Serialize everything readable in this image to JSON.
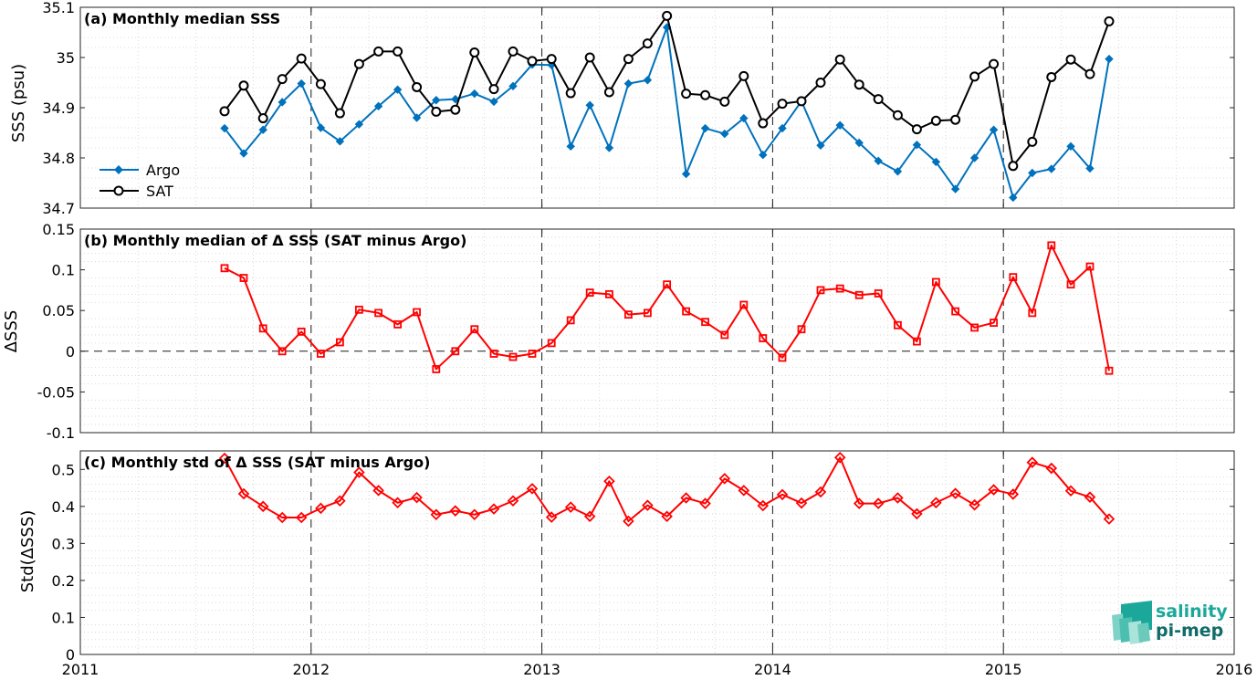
{
  "colors": {
    "argo": "#0072BD",
    "sat": "#000000",
    "delta": "#FF0000",
    "logo_teal": "#1BA89A",
    "logo_dark": "#116B66"
  },
  "logo": {
    "line1": "salinity",
    "line2": "pi-mep"
  },
  "chart_data": [
    {
      "type": "line",
      "title": "(a) Monthly median SSS",
      "ylabel": "SSS (psu)",
      "xlim": [
        2011,
        2016
      ],
      "ylim": [
        34.7,
        35.1
      ],
      "yticks": [
        34.7,
        34.8,
        34.9,
        35,
        35.1
      ],
      "ytick_labels": [
        "34.7",
        "34.8",
        "34.9",
        "35",
        "35.1"
      ],
      "xticks": [
        2011,
        2012,
        2013,
        2014,
        2015,
        2016
      ],
      "xtick_labels": [
        "2011",
        "2012",
        "2013",
        "2014",
        "2015",
        "2016"
      ],
      "grid": true,
      "legend": "bottom-left",
      "x": [
        2011.625,
        2011.708,
        2011.792,
        2011.875,
        2011.958,
        2012.042,
        2012.125,
        2012.208,
        2012.292,
        2012.375,
        2012.458,
        2012.542,
        2012.625,
        2012.708,
        2012.792,
        2012.875,
        2012.958,
        2013.042,
        2013.125,
        2013.208,
        2013.292,
        2013.375,
        2013.458,
        2013.542,
        2013.625,
        2013.708,
        2013.792,
        2013.875,
        2013.958,
        2014.042,
        2014.125,
        2014.208,
        2014.292,
        2014.375,
        2014.458,
        2014.542,
        2014.625,
        2014.708,
        2014.792,
        2014.875,
        2014.958,
        2015.042,
        2015.125,
        2015.208,
        2015.292,
        2015.375,
        2015.458
      ],
      "series": [
        {
          "name": "Argo",
          "values": [
            34.859,
            34.809,
            34.856,
            34.911,
            34.948,
            34.86,
            34.833,
            34.867,
            34.903,
            34.936,
            34.88,
            34.915,
            34.917,
            34.928,
            34.912,
            34.943,
            34.986,
            34.985,
            34.823,
            34.905,
            34.82,
            34.948,
            34.955,
            35.06,
            34.768,
            34.859,
            34.848,
            34.879,
            34.806,
            34.859,
            34.913,
            34.825,
            34.865,
            34.83,
            34.794,
            34.773,
            34.826,
            34.792,
            34.738,
            34.8,
            34.856,
            34.721,
            34.77,
            34.778,
            34.823,
            34.779,
            34.997
          ]
        },
        {
          "name": "SAT",
          "values": [
            34.893,
            34.944,
            34.879,
            34.957,
            34.998,
            34.947,
            34.889,
            34.987,
            35.012,
            35.012,
            34.941,
            34.892,
            34.896,
            35.01,
            34.937,
            35.012,
            34.993,
            34.997,
            34.929,
            35,
            34.931,
            34.997,
            35.028,
            35.083,
            34.928,
            34.925,
            34.912,
            34.963,
            34.869,
            34.908,
            34.913,
            34.95,
            34.996,
            34.946,
            34.917,
            34.885,
            34.857,
            34.874,
            34.876,
            34.962,
            34.987,
            34.784,
            34.832,
            34.961,
            34.996,
            34.967,
            35.072
          ]
        }
      ]
    },
    {
      "type": "line",
      "title": "(b) Monthly median of Δ SSS (SAT minus Argo)",
      "ylabel": "ΔSSS",
      "xlim": [
        2011,
        2016
      ],
      "ylim": [
        -0.1,
        0.15
      ],
      "yticks": [
        -0.1,
        -0.05,
        0,
        0.05,
        0.1,
        0.15
      ],
      "ytick_labels": [
        "-0.1",
        "-0.05",
        "0",
        "0.05",
        "0.1",
        "0.15"
      ],
      "xticks": [
        2011,
        2012,
        2013,
        2014,
        2015,
        2016
      ],
      "grid": true,
      "x": [
        2011.625,
        2011.708,
        2011.792,
        2011.875,
        2011.958,
        2012.042,
        2012.125,
        2012.208,
        2012.292,
        2012.375,
        2012.458,
        2012.542,
        2012.625,
        2012.708,
        2012.792,
        2012.875,
        2012.958,
        2013.042,
        2013.125,
        2013.208,
        2013.292,
        2013.375,
        2013.458,
        2013.542,
        2013.625,
        2013.708,
        2013.792,
        2013.875,
        2013.958,
        2014.042,
        2014.125,
        2014.208,
        2014.292,
        2014.375,
        2014.458,
        2014.542,
        2014.625,
        2014.708,
        2014.792,
        2014.875,
        2014.958,
        2015.042,
        2015.125,
        2015.208,
        2015.292,
        2015.375,
        2015.458
      ],
      "series": [
        {
          "values": [
            0.102,
            0.09,
            0.028,
            0.0,
            0.024,
            -0.003,
            0.011,
            0.051,
            0.047,
            0.033,
            0.048,
            -0.022,
            0.0,
            0.027,
            -0.003,
            -0.007,
            -0.003,
            0.01,
            0.038,
            0.072,
            0.07,
            0.045,
            0.047,
            0.082,
            0.049,
            0.036,
            0.02,
            0.057,
            0.016,
            -0.008,
            0.027,
            0.075,
            0.077,
            0.069,
            0.071,
            0.032,
            0.012,
            0.085,
            0.049,
            0.029,
            0.035,
            0.091,
            0.047,
            0.13,
            0.082,
            0.104,
            -0.024
          ]
        }
      ]
    },
    {
      "type": "line",
      "title": "(c) Monthly std of Δ SSS (SAT minus Argo)",
      "ylabel": "Std(ΔSSS)",
      "xlim": [
        2011,
        2016
      ],
      "ylim": [
        0,
        0.55
      ],
      "yticks": [
        0,
        0.1,
        0.2,
        0.3,
        0.4,
        0.5
      ],
      "ytick_labels": [
        "0",
        "0.1",
        "0.2",
        "0.3",
        "0.4",
        "0.5"
      ],
      "xticks": [
        2011,
        2012,
        2013,
        2014,
        2015,
        2016
      ],
      "xtick_labels": [
        "2011",
        "2012",
        "2013",
        "2014",
        "2015",
        "2016"
      ],
      "grid": true,
      "x": [
        2011.625,
        2011.708,
        2011.792,
        2011.875,
        2011.958,
        2012.042,
        2012.125,
        2012.208,
        2012.292,
        2012.375,
        2012.458,
        2012.542,
        2012.625,
        2012.708,
        2012.792,
        2012.875,
        2012.958,
        2013.042,
        2013.125,
        2013.208,
        2013.292,
        2013.375,
        2013.458,
        2013.542,
        2013.625,
        2013.708,
        2013.792,
        2013.875,
        2013.958,
        2014.042,
        2014.125,
        2014.208,
        2014.292,
        2014.375,
        2014.458,
        2014.542,
        2014.625,
        2014.708,
        2014.792,
        2014.875,
        2014.958,
        2015.042,
        2015.125,
        2015.208,
        2015.292,
        2015.375,
        2015.458
      ],
      "series": [
        {
          "values": [
            0.53,
            0.434,
            0.4,
            0.37,
            0.37,
            0.395,
            0.415,
            0.492,
            0.443,
            0.41,
            0.424,
            0.378,
            0.388,
            0.378,
            0.393,
            0.415,
            0.448,
            0.371,
            0.398,
            0.373,
            0.468,
            0.36,
            0.403,
            0.373,
            0.423,
            0.408,
            0.475,
            0.443,
            0.402,
            0.432,
            0.409,
            0.439,
            0.532,
            0.408,
            0.408,
            0.423,
            0.38,
            0.41,
            0.435,
            0.404,
            0.445,
            0.433,
            0.519,
            0.503,
            0.442,
            0.425,
            0.366
          ]
        }
      ]
    }
  ]
}
